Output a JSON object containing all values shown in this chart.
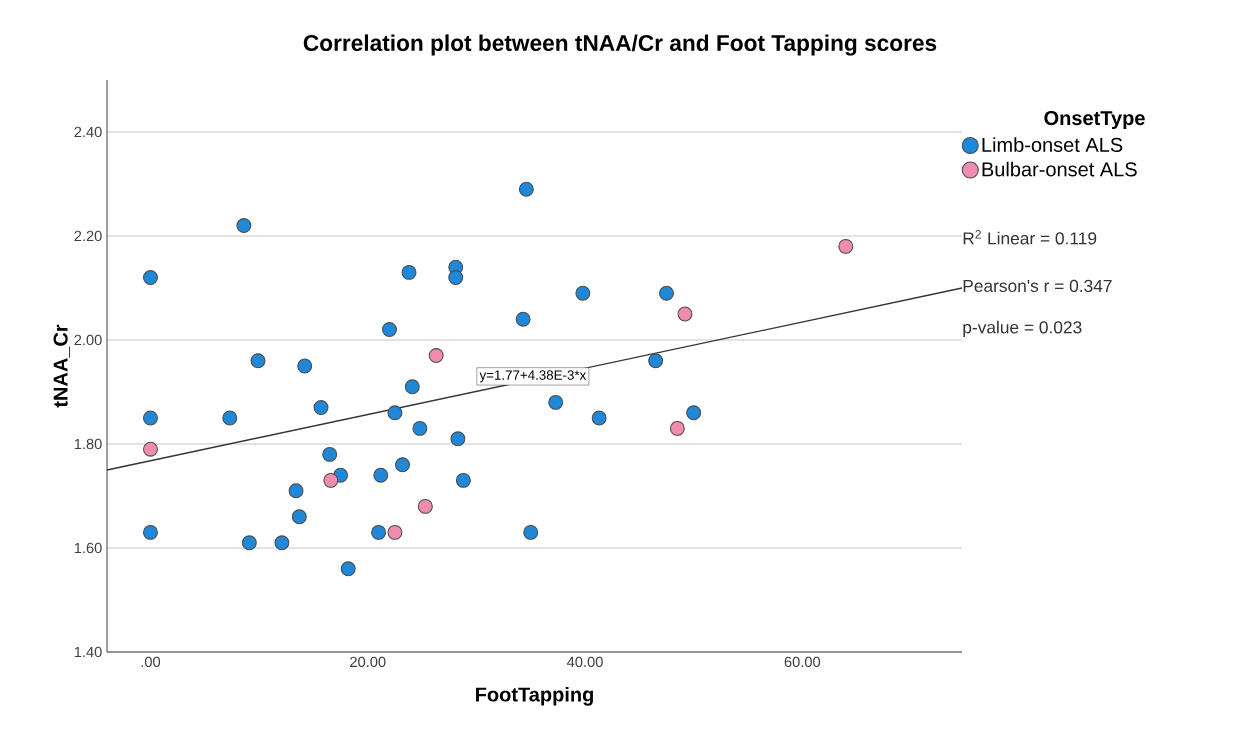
{
  "chart_data": {
    "type": "scatter",
    "title": "Correlation plot between tNAA/Cr and Foot Tapping scores",
    "xlabel": "FootTapping",
    "ylabel": "tNAA_Cr",
    "legend_title": "OnsetType",
    "xlim": [
      -4,
      74.7
    ],
    "xticks": [
      {
        "value": 0,
        "label": ".00"
      },
      {
        "value": 20,
        "label": "20.00"
      },
      {
        "value": 40,
        "label": "40.00"
      },
      {
        "value": 60,
        "label": "60.00"
      }
    ],
    "ylim": [
      1.4,
      2.5
    ],
    "yticks": [
      {
        "value": 1.4,
        "label": "1.40"
      },
      {
        "value": 1.6,
        "label": "1.60"
      },
      {
        "value": 1.8,
        "label": "1.80"
      },
      {
        "value": 2.0,
        "label": "2.00"
      },
      {
        "value": 2.2,
        "label": "2.20"
      },
      {
        "value": 2.4,
        "label": "2.40"
      }
    ],
    "grid": "y",
    "legend": "right",
    "marker": "circle",
    "series": [
      {
        "name": "Limb-onset ALS",
        "color": "#1f88d8",
        "x": [
          0,
          8.6,
          23.8,
          28.1,
          28.1,
          22.0,
          9.9,
          14.2,
          24.1,
          0,
          7.3,
          15.7,
          22.5,
          24.8,
          28.3,
          16.5,
          17.5,
          21.2,
          23.2,
          28.8,
          13.4,
          13.7,
          0,
          21.0,
          9.1,
          12.1,
          18.2,
          34.6,
          39.8,
          47.5,
          34.3,
          46.5,
          37.3,
          41.3,
          50.0,
          35.0
        ],
        "values": [
          2.12,
          2.22,
          2.13,
          2.14,
          2.12,
          2.02,
          1.96,
          1.95,
          1.91,
          1.85,
          1.85,
          1.87,
          1.86,
          1.83,
          1.81,
          1.78,
          1.74,
          1.74,
          1.76,
          1.73,
          1.71,
          1.66,
          1.63,
          1.63,
          1.61,
          1.61,
          1.56,
          2.29,
          2.09,
          2.09,
          2.04,
          1.96,
          1.88,
          1.85,
          1.86,
          1.63
        ]
      },
      {
        "name": "Bulbar-onset ALS",
        "color": "#f08cb0",
        "x": [
          26.3,
          0,
          16.6,
          25.3,
          22.5,
          49.2,
          64.0,
          48.5
        ],
        "values": [
          1.97,
          1.79,
          1.73,
          1.68,
          1.63,
          2.05,
          2.18,
          1.83
        ]
      },
      {
        "type": "line",
        "color": "#333333",
        "marker": "none",
        "x": [
          -4,
          74.7
        ],
        "values": [
          1.75,
          2.1
        ]
      }
    ],
    "annotations": [
      {
        "text": "y=1.77+4.38E-3*x",
        "x": 35.2,
        "y": 1.93
      },
      "R$^{2}$ Linear = 0.119",
      "Pearson's r = 0.347",
      "p-value = 0.023"
    ]
  }
}
